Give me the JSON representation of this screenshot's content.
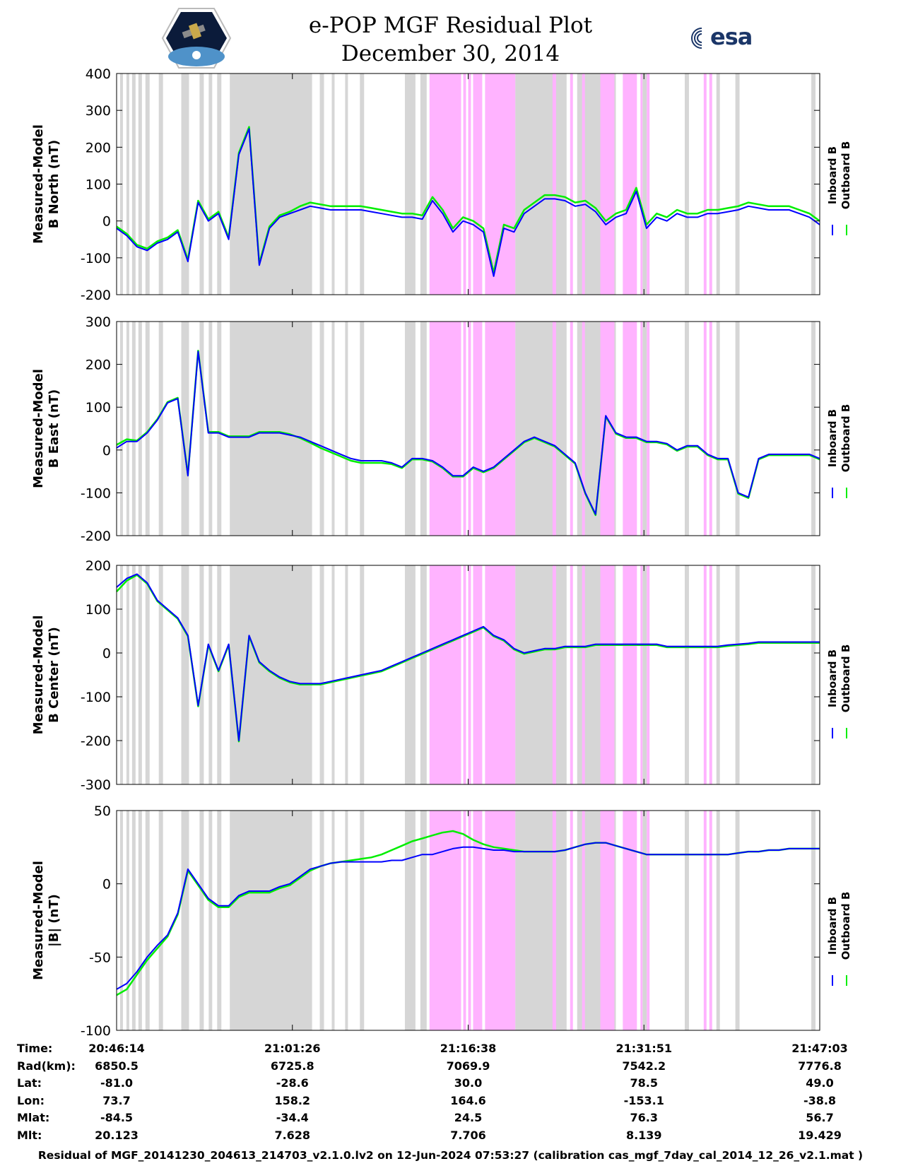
{
  "header": {
    "title_line1": "e-POP MGF Residual Plot",
    "title_line2": "December 30, 2014",
    "left_logo": "cassiope-mission-logo",
    "right_logo_text": "esa"
  },
  "colors": {
    "inboard": "#0000ff",
    "outboard": "#00ee00",
    "gray_band": "#d6d6d6",
    "magenta_band": "#ffb3ff"
  },
  "chart_data": [
    {
      "type": "line",
      "id": "north",
      "ylabel_line1": "Measured-Model",
      "ylabel_line2": "B North (nT)",
      "ylim": [
        -200,
        400
      ],
      "yticks": [
        "400",
        "300",
        "200",
        "100",
        "0",
        "-100",
        "-200"
      ],
      "ytick_values": [
        400,
        300,
        200,
        100,
        0,
        -100,
        -200
      ],
      "legend": [
        "Inboard B",
        "Outboard B"
      ],
      "series": [
        {
          "name": "Inboard B",
          "values": [
            -20,
            -40,
            -70,
            -80,
            -60,
            -50,
            -30,
            -110,
            50,
            0,
            20,
            -50,
            180,
            250,
            -120,
            -20,
            10,
            20,
            30,
            40,
            35,
            30,
            30,
            30,
            30,
            25,
            20,
            15,
            10,
            10,
            5,
            55,
            20,
            -30,
            0,
            -10,
            -30,
            -150,
            -20,
            -30,
            20,
            40,
            60,
            60,
            55,
            40,
            45,
            25,
            -10,
            10,
            20,
            80,
            -20,
            10,
            0,
            20,
            10,
            10,
            20,
            20,
            25,
            30,
            40,
            35,
            30,
            30,
            30,
            20,
            10,
            -10
          ]
        },
        {
          "name": "Outboard B",
          "values": [
            -15,
            -35,
            -65,
            -75,
            -55,
            -45,
            -25,
            -105,
            55,
            5,
            25,
            -45,
            185,
            255,
            -115,
            -15,
            15,
            25,
            40,
            50,
            45,
            40,
            40,
            40,
            40,
            35,
            30,
            25,
            20,
            20,
            15,
            65,
            30,
            -20,
            10,
            0,
            -20,
            -140,
            -10,
            -20,
            30,
            50,
            70,
            70,
            65,
            50,
            55,
            35,
            0,
            20,
            30,
            90,
            -10,
            20,
            10,
            30,
            20,
            20,
            30,
            30,
            35,
            40,
            50,
            45,
            40,
            40,
            40,
            30,
            20,
            0
          ]
        }
      ]
    },
    {
      "type": "line",
      "id": "east",
      "ylabel_line1": "Measured-Model",
      "ylabel_line2": "B East (nT)",
      "ylim": [
        -200,
        300
      ],
      "yticks": [
        "300",
        "200",
        "100",
        "0",
        "-100",
        "-200"
      ],
      "ytick_values": [
        300,
        200,
        100,
        0,
        -100,
        -200
      ],
      "legend": [
        "Inboard B",
        "Outboard B"
      ],
      "series": [
        {
          "name": "Inboard B",
          "values": [
            5,
            20,
            20,
            40,
            70,
            110,
            120,
            -60,
            230,
            40,
            40,
            30,
            30,
            30,
            40,
            40,
            40,
            35,
            30,
            20,
            10,
            0,
            -10,
            -20,
            -25,
            -25,
            -25,
            -30,
            -40,
            -20,
            -20,
            -25,
            -40,
            -60,
            -60,
            -40,
            -50,
            -40,
            -20,
            0,
            20,
            30,
            20,
            10,
            -10,
            -30,
            -100,
            -150,
            80,
            40,
            30,
            30,
            20,
            20,
            15,
            0,
            10,
            10,
            -10,
            -20,
            -20,
            -100,
            -110,
            -20,
            -10,
            -10,
            -10,
            -10,
            -10,
            -20
          ]
        },
        {
          "name": "Outboard B",
          "values": [
            12,
            25,
            22,
            42,
            72,
            112,
            122,
            -58,
            232,
            42,
            42,
            32,
            32,
            32,
            42,
            42,
            42,
            37,
            28,
            17,
            5,
            -5,
            -15,
            -25,
            -30,
            -30,
            -30,
            -33,
            -42,
            -22,
            -22,
            -27,
            -42,
            -62,
            -62,
            -42,
            -52,
            -42,
            -22,
            -2,
            18,
            28,
            18,
            8,
            -12,
            -32,
            -102,
            -152,
            78,
            38,
            28,
            28,
            18,
            18,
            13,
            -2,
            8,
            8,
            -12,
            -22,
            -22,
            -102,
            -112,
            -22,
            -12,
            -12,
            -12,
            -12,
            -12,
            -22
          ]
        }
      ]
    },
    {
      "type": "line",
      "id": "center",
      "ylabel_line1": "Measured-Model",
      "ylabel_line2": "B Center (nT)",
      "ylim": [
        -300,
        200
      ],
      "yticks": [
        "200",
        "100",
        "0",
        "-100",
        "-200",
        "-300"
      ],
      "ytick_values": [
        200,
        100,
        0,
        -100,
        -200,
        -300
      ],
      "legend": [
        "Inboard B",
        "Outboard B"
      ],
      "series": [
        {
          "name": "Inboard B",
          "values": [
            150,
            170,
            180,
            160,
            120,
            100,
            80,
            40,
            -120,
            20,
            -40,
            20,
            -200,
            40,
            -20,
            -40,
            -55,
            -65,
            -70,
            -70,
            -70,
            -65,
            -60,
            -55,
            -50,
            -45,
            -40,
            -30,
            -20,
            -10,
            0,
            10,
            20,
            30,
            40,
            50,
            60,
            40,
            30,
            10,
            0,
            5,
            10,
            10,
            15,
            15,
            15,
            20,
            20,
            20,
            20,
            20,
            20,
            20,
            15,
            15,
            15,
            15,
            15,
            15,
            18,
            20,
            22,
            25,
            25,
            25,
            25,
            25,
            25,
            25
          ]
        },
        {
          "name": "Outboard B",
          "values": [
            140,
            165,
            178,
            158,
            118,
            98,
            78,
            38,
            -122,
            18,
            -42,
            18,
            -202,
            38,
            -22,
            -42,
            -57,
            -67,
            -72,
            -72,
            -72,
            -67,
            -62,
            -57,
            -52,
            -47,
            -42,
            -32,
            -22,
            -12,
            -2,
            8,
            18,
            28,
            38,
            48,
            58,
            38,
            28,
            8,
            -2,
            3,
            8,
            8,
            13,
            13,
            13,
            18,
            18,
            18,
            18,
            18,
            18,
            18,
            13,
            13,
            13,
            13,
            13,
            13,
            16,
            18,
            20,
            23,
            23,
            23,
            23,
            23,
            23,
            23
          ]
        }
      ]
    },
    {
      "type": "line",
      "id": "total",
      "ylabel_line1": "Measured-Model",
      "ylabel_line2": "|B| (nT)",
      "ylim": [
        -100,
        50
      ],
      "yticks": [
        "50",
        "0",
        "-50",
        "-100"
      ],
      "ytick_values": [
        50,
        0,
        -50,
        -100
      ],
      "legend": [
        "Inboard B",
        "Outboard B"
      ],
      "series": [
        {
          "name": "Inboard B",
          "values": [
            -72,
            -68,
            -60,
            -50,
            -42,
            -35,
            -20,
            10,
            0,
            -10,
            -15,
            -15,
            -8,
            -5,
            -5,
            -5,
            -2,
            0,
            5,
            10,
            12,
            14,
            15,
            15,
            15,
            15,
            15,
            16,
            16,
            18,
            20,
            20,
            22,
            24,
            25,
            25,
            24,
            23,
            23,
            22,
            22,
            22,
            22,
            22,
            23,
            25,
            27,
            28,
            28,
            26,
            24,
            22,
            20,
            20,
            20,
            20,
            20,
            20,
            20,
            20,
            20,
            21,
            22,
            22,
            23,
            23,
            24,
            24,
            24,
            24
          ]
        },
        {
          "name": "Outboard B",
          "values": [
            -76,
            -72,
            -62,
            -52,
            -44,
            -36,
            -21,
            9,
            -1,
            -11,
            -16,
            -16,
            -9,
            -6,
            -6,
            -6,
            -3,
            -1,
            4,
            9,
            12,
            14,
            15,
            16,
            17,
            18,
            20,
            23,
            26,
            29,
            31,
            33,
            35,
            36,
            34,
            30,
            27,
            25,
            24,
            23,
            22,
            22,
            22,
            22,
            23,
            25,
            27,
            28,
            28,
            26,
            24,
            22,
            20,
            20,
            20,
            20,
            20,
            20,
            20,
            20,
            20,
            21,
            22,
            22,
            23,
            23,
            24,
            24,
            24,
            24
          ]
        }
      ]
    }
  ],
  "xticks": [
    "20:46:14",
    "21:01:26",
    "21:16:38",
    "21:31:51",
    "21:47:03"
  ],
  "table": {
    "row_labels": [
      "Time:",
      "Rad(km):",
      "Lat:",
      "Lon:",
      "Mlat:",
      "Mlt:"
    ],
    "columns": [
      [
        "20:46:14",
        "6850.5",
        "-81.0",
        "73.7",
        "-84.5",
        "20.123"
      ],
      [
        "21:01:26",
        "6725.8",
        "-28.6",
        "158.2",
        "-34.4",
        "7.628"
      ],
      [
        "21:16:38",
        "7069.9",
        "30.0",
        "164.6",
        "24.5",
        "7.706"
      ],
      [
        "21:31:51",
        "7542.2",
        "78.5",
        "-153.1",
        "76.3",
        "8.139"
      ],
      [
        "21:47:03",
        "7776.8",
        "49.0",
        "-38.8",
        "56.7",
        "19.429"
      ]
    ]
  },
  "bands": {
    "gray": [
      [
        0.005,
        0.009
      ],
      [
        0.014,
        0.018
      ],
      [
        0.022,
        0.027
      ],
      [
        0.031,
        0.036
      ],
      [
        0.041,
        0.047
      ],
      [
        0.06,
        0.066
      ],
      [
        0.092,
        0.103
      ],
      [
        0.118,
        0.124
      ],
      [
        0.131,
        0.136
      ],
      [
        0.143,
        0.149
      ],
      [
        0.161,
        0.278
      ],
      [
        0.289,
        0.295
      ],
      [
        0.306,
        0.31
      ],
      [
        0.325,
        0.329
      ],
      [
        0.346,
        0.352
      ],
      [
        0.41,
        0.425
      ],
      [
        0.432,
        0.441
      ],
      [
        0.452,
        0.458
      ],
      [
        0.567,
        0.6
      ],
      [
        0.6,
        0.64
      ],
      [
        0.655,
        0.71
      ],
      [
        0.72,
        0.726
      ],
      [
        0.748,
        0.754
      ],
      [
        0.808,
        0.814
      ],
      [
        0.853,
        0.858
      ],
      [
        0.88,
        0.886
      ],
      [
        0.988,
        0.994
      ]
    ],
    "magenta": [
      [
        0.445,
        0.49
      ],
      [
        0.493,
        0.497
      ],
      [
        0.5,
        0.504
      ],
      [
        0.507,
        0.52
      ],
      [
        0.525,
        0.531
      ],
      [
        0.524,
        0.567
      ],
      [
        0.62,
        0.625
      ],
      [
        0.645,
        0.649
      ],
      [
        0.662,
        0.666
      ],
      [
        0.688,
        0.708
      ],
      [
        0.72,
        0.74
      ],
      [
        0.745,
        0.748
      ],
      [
        0.754,
        0.758
      ],
      [
        0.835,
        0.839
      ],
      [
        0.843,
        0.847
      ]
    ]
  },
  "footer": "Residual of MGF_20141230_204613_214703_v2.1.0.lv2 on 12-Jun-2024 07:53:27 (calibration cas_mgf_7day_cal_2014_12_26_v2.1.mat )"
}
